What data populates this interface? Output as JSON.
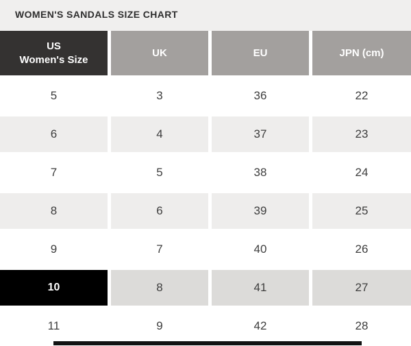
{
  "title": "WOMEN'S SANDALS SIZE CHART",
  "table": {
    "headers": [
      {
        "id": "us",
        "label": "US\nWomen's Size"
      },
      {
        "id": "uk",
        "label": "UK"
      },
      {
        "id": "eu",
        "label": "EU"
      },
      {
        "id": "jpn",
        "label": "JPN (cm)"
      }
    ],
    "rows": [
      {
        "us": "5",
        "uk": "3",
        "eu": "36",
        "jpn": "22",
        "highlighted": false
      },
      {
        "us": "6",
        "uk": "4",
        "eu": "37",
        "jpn": "23",
        "highlighted": false
      },
      {
        "us": "7",
        "uk": "5",
        "eu": "38",
        "jpn": "24",
        "highlighted": false
      },
      {
        "us": "8",
        "uk": "6",
        "eu": "39",
        "jpn": "25",
        "highlighted": false
      },
      {
        "us": "9",
        "uk": "7",
        "eu": "40",
        "jpn": "26",
        "highlighted": false
      },
      {
        "us": "10",
        "uk": "8",
        "eu": "41",
        "jpn": "27",
        "highlighted": true
      },
      {
        "us": "11",
        "uk": "9",
        "eu": "42",
        "jpn": "28",
        "highlighted": false
      }
    ]
  },
  "colors": {
    "title_band_bg": "#f0efee",
    "title_text": "#2e2e2e",
    "header_primary_bg": "#343231",
    "header_secondary_bg": "#a3a09e",
    "row_alt_bg": "#eeedec",
    "highlight_us_bg": "#000000",
    "highlight_row_bg": "#dcdbd9",
    "text_dark": "#3d3d3d",
    "text_light": "#ffffff",
    "scrollbar_color": "#121212"
  }
}
